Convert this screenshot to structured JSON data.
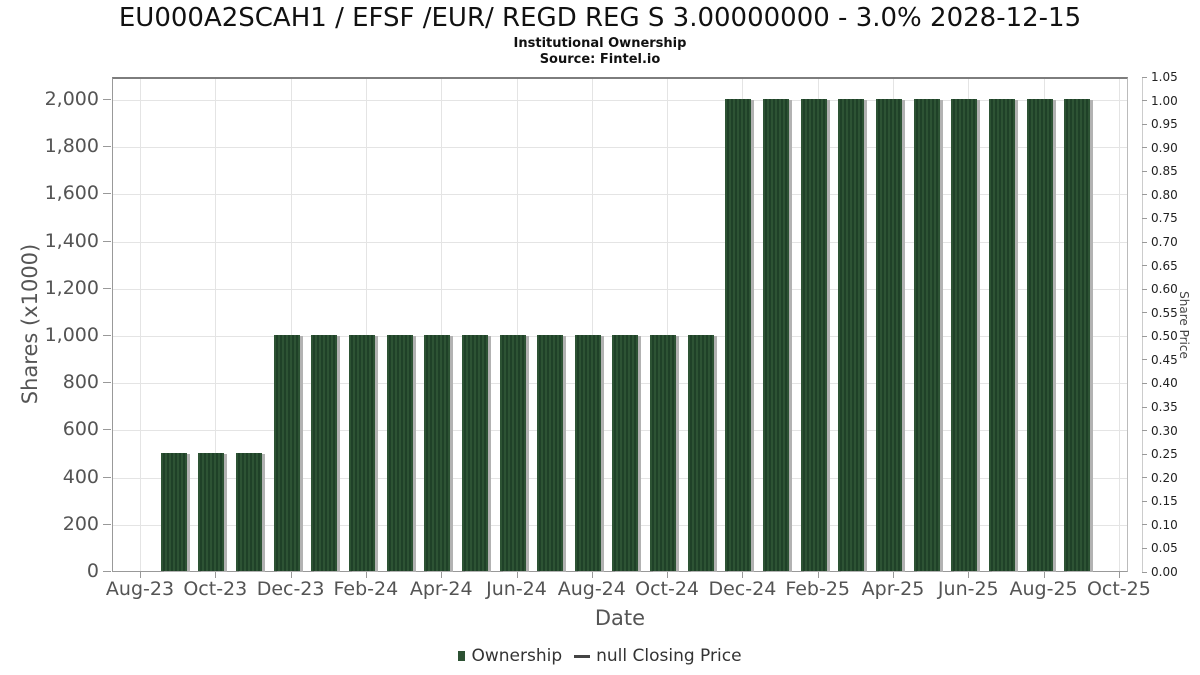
{
  "chart_data": {
    "type": "bar",
    "title": "EU000A2SCAH1 / EFSF /EUR/ REGD REG S 3.00000000 - 3.0% 2028-12-15",
    "subtitle": "Institutional Ownership",
    "source": "Source: Fintel.io",
    "xlabel": "Date",
    "ylabel": "Shares (x1000)",
    "y2label": "Share Price",
    "ylim": [
      0,
      2100
    ],
    "y2lim": [
      0,
      1.05
    ],
    "grid": true,
    "legend_position": "bottom",
    "x_axis_months": [
      "Aug-23",
      "Sep-23",
      "Oct-23",
      "Nov-23",
      "Dec-23",
      "Jan-24",
      "Feb-24",
      "Mar-24",
      "Apr-24",
      "May-24",
      "Jun-24",
      "Jul-24",
      "Aug-24",
      "Sep-24",
      "Oct-24",
      "Nov-24",
      "Dec-24",
      "Jan-25",
      "Feb-25",
      "Mar-25",
      "Apr-25",
      "May-25",
      "Jun-25",
      "Jul-25",
      "Aug-25",
      "Sep-25",
      "Oct-25"
    ],
    "x_tick_labels": [
      "Aug-23",
      "Oct-23",
      "Dec-23",
      "Feb-24",
      "Apr-24",
      "Jun-24",
      "Aug-24",
      "Oct-24",
      "Dec-24",
      "Feb-25",
      "Apr-25",
      "Jun-25",
      "Aug-25",
      "Oct-25"
    ],
    "left_tick_values": [
      2000,
      1800,
      1600,
      1400,
      1200,
      1000,
      800,
      600,
      400,
      200,
      0
    ],
    "left_tick_labels": [
      "2,000",
      "1,800",
      "1,600",
      "1,400",
      "1,200",
      "1,000",
      "800",
      "600",
      "400",
      "200",
      "0"
    ],
    "right_tick_labels": [
      "1.05",
      "1.00",
      "0.95",
      "0.90",
      "0.85",
      "0.80",
      "0.75",
      "0.70",
      "0.65",
      "0.60",
      "0.55",
      "0.50",
      "0.45",
      "0.40",
      "0.35",
      "0.30",
      "0.25",
      "0.20",
      "0.15",
      "0.10",
      "0.05",
      "0.00"
    ],
    "series": [
      {
        "name": "Ownership",
        "type": "bar",
        "unit": "shares x1000",
        "categories": [
          "Sep-23",
          "Oct-23",
          "Nov-23",
          "Dec-23",
          "Jan-24",
          "Feb-24",
          "Mar-24",
          "Apr-24",
          "May-24",
          "Jun-24",
          "Jul-24",
          "Aug-24",
          "Sep-24",
          "Oct-24",
          "Nov-24",
          "Dec-24",
          "Jan-25",
          "Feb-25",
          "Mar-25",
          "Apr-25",
          "May-25",
          "Jun-25",
          "Jul-25",
          "Aug-25",
          "Sep-25"
        ],
        "values": [
          500,
          500,
          500,
          1000,
          1000,
          1000,
          1000,
          1000,
          1000,
          1000,
          1000,
          1000,
          1000,
          1000,
          1000,
          2000,
          2000,
          2000,
          2000,
          2000,
          2000,
          2000,
          2000,
          2000,
          2000
        ]
      },
      {
        "name": "null Closing Price",
        "type": "line",
        "values": []
      }
    ],
    "legend": [
      {
        "label": "Ownership",
        "marker": "square",
        "color": "#2d5233"
      },
      {
        "label": "null Closing Price",
        "marker": "line",
        "color": "#444444"
      }
    ],
    "colors": {
      "bar": "#2d5334",
      "bar_stripe": "#1f4128",
      "bar_shadow": "#b2b2b2",
      "grid": "#e4e4e4",
      "axis": "#999999",
      "title_text": "#111111",
      "tick_text": "#545454",
      "axis_title_text": "#555555"
    }
  }
}
